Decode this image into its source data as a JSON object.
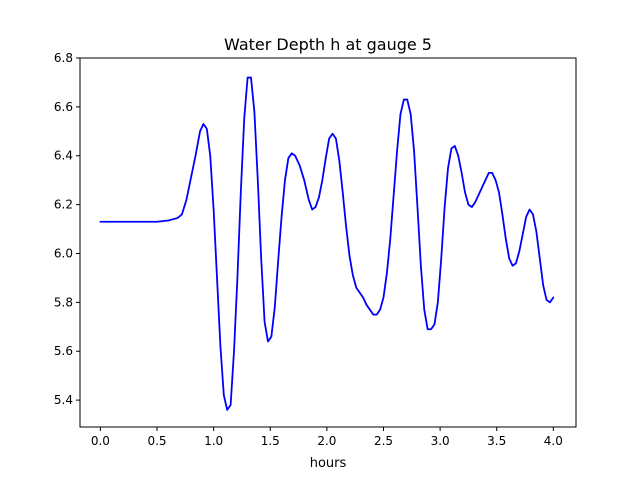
{
  "chart_data": {
    "type": "line",
    "title": "Water Depth h at gauge 5",
    "xlabel": "hours",
    "ylabel": "",
    "xlim": [
      -0.18,
      4.2
    ],
    "ylim": [
      5.29,
      6.8
    ],
    "xticks": [
      0.0,
      0.5,
      1.0,
      1.5,
      2.0,
      2.5,
      3.0,
      3.5,
      4.0
    ],
    "xtick_labels": [
      "0.0",
      "0.5",
      "1.0",
      "1.5",
      "2.0",
      "2.5",
      "3.0",
      "3.5",
      "4.0"
    ],
    "yticks": [
      5.4,
      5.6,
      5.8,
      6.0,
      6.2,
      6.4,
      6.6,
      6.8
    ],
    "ytick_labels": [
      "5.4",
      "5.6",
      "5.8",
      "6.0",
      "6.2",
      "6.4",
      "6.6",
      "6.8"
    ],
    "grid": false,
    "series": [
      {
        "color": "#0000ff",
        "x": [
          0.0,
          0.2,
          0.4,
          0.5,
          0.6,
          0.68,
          0.72,
          0.76,
          0.8,
          0.84,
          0.88,
          0.91,
          0.94,
          0.97,
          1.0,
          1.03,
          1.06,
          1.09,
          1.12,
          1.15,
          1.18,
          1.21,
          1.24,
          1.27,
          1.3,
          1.33,
          1.36,
          1.39,
          1.42,
          1.45,
          1.48,
          1.51,
          1.54,
          1.57,
          1.6,
          1.63,
          1.66,
          1.69,
          1.72,
          1.76,
          1.8,
          1.84,
          1.87,
          1.9,
          1.93,
          1.96,
          1.99,
          2.02,
          2.05,
          2.08,
          2.11,
          2.14,
          2.17,
          2.2,
          2.23,
          2.26,
          2.29,
          2.32,
          2.35,
          2.38,
          2.41,
          2.44,
          2.47,
          2.5,
          2.53,
          2.56,
          2.59,
          2.62,
          2.65,
          2.68,
          2.71,
          2.74,
          2.77,
          2.8,
          2.83,
          2.86,
          2.89,
          2.92,
          2.95,
          2.98,
          3.01,
          3.04,
          3.07,
          3.1,
          3.13,
          3.16,
          3.19,
          3.22,
          3.25,
          3.28,
          3.31,
          3.34,
          3.37,
          3.4,
          3.43,
          3.46,
          3.49,
          3.52,
          3.55,
          3.58,
          3.61,
          3.64,
          3.67,
          3.7,
          3.73,
          3.76,
          3.79,
          3.82,
          3.85,
          3.88,
          3.91,
          3.94,
          3.97,
          4.0
        ],
        "y": [
          6.13,
          6.13,
          6.13,
          6.13,
          6.135,
          6.145,
          6.16,
          6.22,
          6.31,
          6.4,
          6.5,
          6.53,
          6.51,
          6.4,
          6.18,
          5.9,
          5.62,
          5.42,
          5.36,
          5.38,
          5.6,
          5.9,
          6.25,
          6.55,
          6.72,
          6.72,
          6.58,
          6.3,
          5.98,
          5.72,
          5.64,
          5.66,
          5.78,
          5.97,
          6.15,
          6.3,
          6.39,
          6.41,
          6.4,
          6.36,
          6.3,
          6.22,
          6.18,
          6.19,
          6.23,
          6.3,
          6.39,
          6.47,
          6.49,
          6.47,
          6.38,
          6.25,
          6.11,
          5.99,
          5.91,
          5.86,
          5.84,
          5.82,
          5.79,
          5.77,
          5.75,
          5.75,
          5.77,
          5.82,
          5.92,
          6.06,
          6.24,
          6.42,
          6.57,
          6.63,
          6.63,
          6.57,
          6.42,
          6.19,
          5.95,
          5.77,
          5.69,
          5.69,
          5.71,
          5.8,
          5.98,
          6.19,
          6.35,
          6.43,
          6.44,
          6.4,
          6.33,
          6.25,
          6.2,
          6.19,
          6.21,
          6.24,
          6.27,
          6.3,
          6.33,
          6.33,
          6.3,
          6.25,
          6.16,
          6.06,
          5.98,
          5.95,
          5.96,
          6.01,
          6.08,
          6.15,
          6.18,
          6.16,
          6.09,
          5.98,
          5.87,
          5.81,
          5.8,
          5.82
        ]
      }
    ]
  }
}
